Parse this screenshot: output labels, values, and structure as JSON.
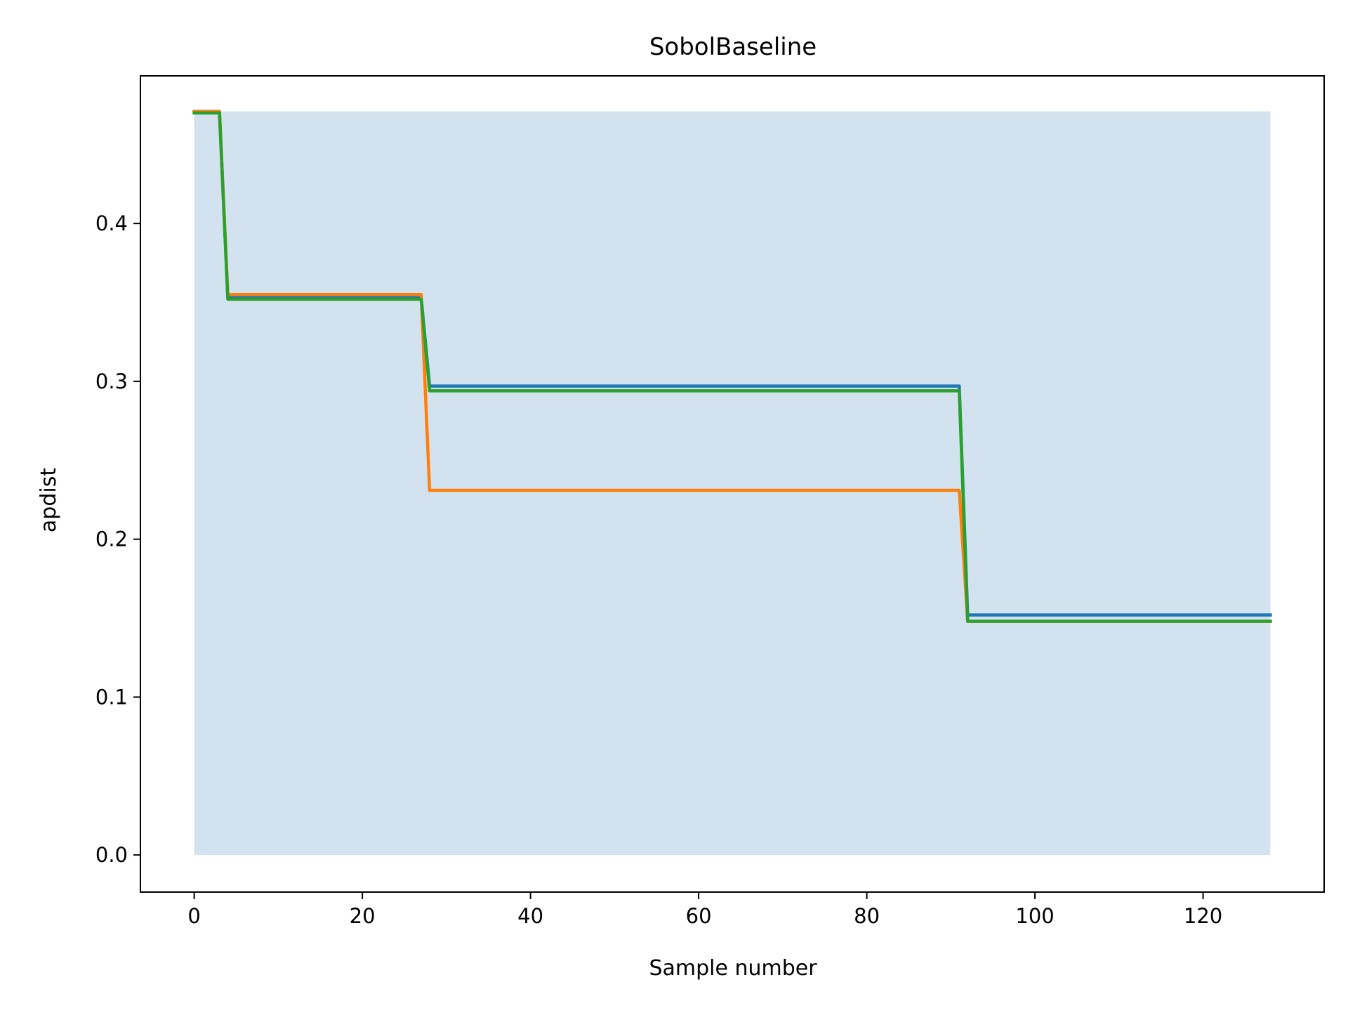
{
  "chart_data": {
    "type": "line",
    "title": "SobolBaseline",
    "xlabel": "Sample number",
    "ylabel": "apdist",
    "xlim": [
      -6.4,
      134.4
    ],
    "ylim": [
      -0.0235,
      0.4935
    ],
    "xticks": [
      0,
      20,
      40,
      60,
      80,
      100,
      120
    ],
    "xtick_labels": [
      "0",
      "20",
      "40",
      "60",
      "80",
      "100",
      "120"
    ],
    "yticks": [
      0.0,
      0.1,
      0.2,
      0.3,
      0.4
    ],
    "ytick_labels": [
      "0.0",
      "0.1",
      "0.2",
      "0.3",
      "0.4"
    ],
    "grid": false,
    "legend": "none",
    "band": {
      "x": [
        0,
        128
      ],
      "y_low": 0.0,
      "y_high": 0.471,
      "color": "#d2e3ef"
    },
    "series": [
      {
        "color": "#1f77b4",
        "points": [
          [
            0,
            0.471
          ],
          [
            3,
            0.471
          ],
          [
            4,
            0.353
          ],
          [
            27,
            0.353
          ],
          [
            28,
            0.297
          ],
          [
            91,
            0.297
          ],
          [
            92,
            0.152
          ],
          [
            128,
            0.152
          ]
        ]
      },
      {
        "color": "#ff7f0e",
        "points": [
          [
            0,
            0.471
          ],
          [
            3,
            0.471
          ],
          [
            4,
            0.355
          ],
          [
            27,
            0.355
          ],
          [
            28,
            0.231
          ],
          [
            91,
            0.231
          ],
          [
            92,
            0.148
          ],
          [
            128,
            0.148
          ]
        ]
      },
      {
        "color": "#2ca02c",
        "points": [
          [
            0,
            0.47
          ],
          [
            3,
            0.47
          ],
          [
            4,
            0.352
          ],
          [
            27,
            0.352
          ],
          [
            28,
            0.294
          ],
          [
            91,
            0.294
          ],
          [
            92,
            0.148
          ],
          [
            128,
            0.148
          ]
        ]
      }
    ]
  }
}
